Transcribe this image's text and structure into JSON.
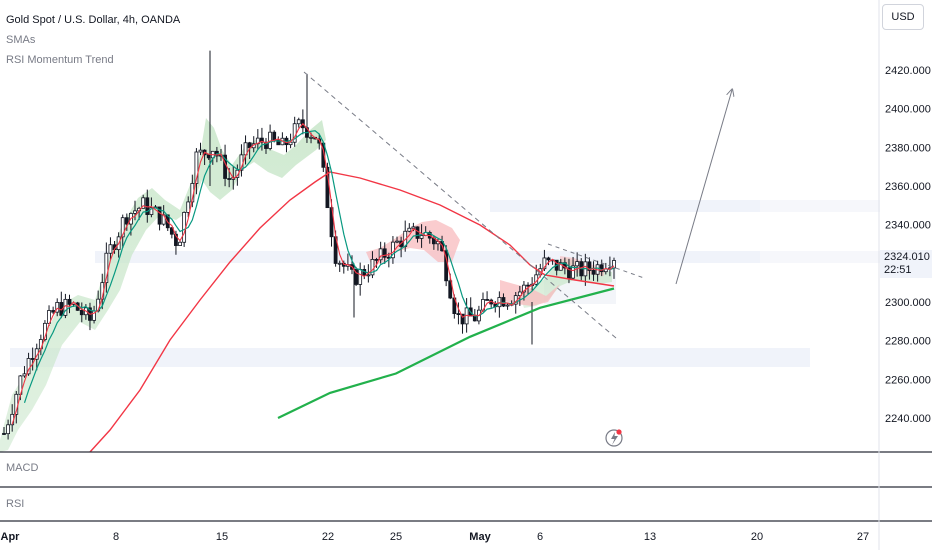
{
  "legend": {
    "title": "Gold Spot / U.S. Dollar, 4h, OANDA",
    "sma": "SMAs",
    "rsi_trend": "RSI Momentum Trend"
  },
  "currency_button": "USD",
  "current_price": "2324.010",
  "countdown": "22:51",
  "panes": {
    "macd": "MACD",
    "rsi": "RSI"
  },
  "colors": {
    "bull": "#26a69a",
    "bear": "#ef5350",
    "sma_fast": "#f23645",
    "sma_slow": "#089981",
    "sma_long": "#22b14c",
    "zone": "#f0f3fa",
    "text": "#131722",
    "axis": "#787b86"
  },
  "icons": {
    "alert": "lightning-alert-icon"
  },
  "chart_data": {
    "type": "candlestick",
    "symbol": "Gold Spot / U.S. Dollar",
    "interval": "4h",
    "y_axis": {
      "ticks": [
        2420,
        2400,
        2380,
        2360,
        2340,
        2320,
        2300,
        2280,
        2260,
        2240
      ],
      "labels": [
        "2420.000",
        "2400.000",
        "2380.000",
        "2360.000",
        "2340.000",
        "2320.000",
        "2300.000",
        "2280.000",
        "2260.000",
        "2240.000"
      ]
    },
    "x_axis": {
      "labels": [
        "Apr",
        "8",
        "15",
        "22",
        "25",
        "May",
        "6",
        "13",
        "20",
        "27"
      ],
      "bold": [
        "Apr",
        "May"
      ]
    },
    "price_series": [
      [
        "Apr 1",
        2232
      ],
      [
        "Apr 2",
        2262
      ],
      [
        "Apr 3",
        2282
      ],
      [
        "Apr 4",
        2297
      ],
      [
        "Apr 5",
        2298
      ],
      [
        "Apr 6",
        2290
      ],
      [
        "Apr 8",
        2325
      ],
      [
        "Apr 9",
        2345
      ],
      [
        "Apr 10",
        2350
      ],
      [
        "Apr 11",
        2344
      ],
      [
        "Apr 12",
        2330
      ],
      [
        "Apr 13",
        2375
      ],
      [
        "Apr 15",
        2380
      ],
      [
        "Apr 16",
        2362
      ],
      [
        "Apr 17",
        2380
      ],
      [
        "Apr 18",
        2384
      ],
      [
        "Apr 19",
        2380
      ],
      [
        "Apr 20",
        2392
      ],
      [
        "Apr 22",
        2385
      ],
      [
        "Apr 23",
        2325
      ],
      [
        "Apr 24",
        2312
      ],
      [
        "Apr 25",
        2318
      ],
      [
        "Apr 26",
        2326
      ],
      [
        "Apr 27",
        2334
      ],
      [
        "Apr 28",
        2336
      ],
      [
        "Apr 29",
        2330
      ],
      [
        "Apr 30",
        2292
      ],
      [
        "May 1",
        2292
      ],
      [
        "May 2",
        2302
      ],
      [
        "May 3",
        2302
      ],
      [
        "May 4",
        2308
      ],
      [
        "May 6",
        2320
      ],
      [
        "May 7",
        2318
      ],
      [
        "May 8",
        2316
      ],
      [
        "May 9",
        2318
      ],
      [
        "May 10",
        2324
      ]
    ],
    "sma_long": [
      [
        "Apr 4",
        2239
      ],
      [
        "Apr 8",
        2272
      ],
      [
        "Apr 11",
        2297
      ],
      [
        "Apr 15",
        2325
      ],
      [
        "Apr 18",
        2352
      ],
      [
        "Apr 22",
        2366
      ],
      [
        "Apr 25",
        2369
      ],
      [
        "May 1",
        2348
      ],
      [
        "May 6",
        2330
      ],
      [
        "May 10",
        2322
      ]
    ],
    "sma_200": [
      [
        "Apr 19",
        2240
      ],
      [
        "Apr 22",
        2253
      ],
      [
        "Apr 25",
        2263
      ],
      [
        "May 1",
        2282
      ],
      [
        "May 6",
        2297
      ],
      [
        "May 10",
        2307
      ]
    ],
    "zones": [
      [
        2346,
        2350
      ],
      [
        2320,
        2326
      ],
      [
        2268,
        2274
      ]
    ],
    "trendlines": [
      {
        "from": [
          "Apr 20",
          2418
        ],
        "to": [
          "May 9",
          2280
        ],
        "style": "dashed"
      },
      {
        "from": [
          "May 6",
          2330
        ],
        "to": [
          "May 12",
          2315
        ],
        "style": "dashed"
      },
      {
        "from": [
          "May 14",
          2314
        ],
        "to": [
          "May 18",
          2410
        ],
        "style": "solid-arrow"
      }
    ],
    "current_price": 2324.01
  }
}
